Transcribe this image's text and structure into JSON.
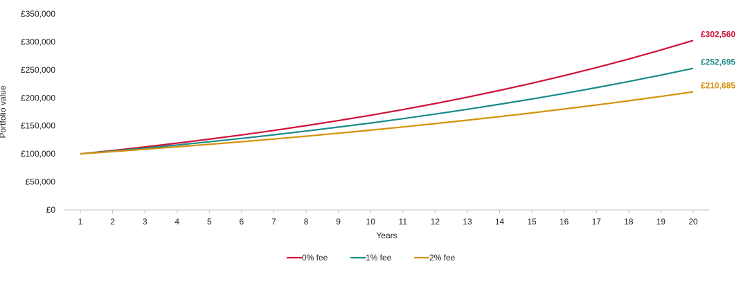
{
  "chart_data": {
    "type": "line",
    "xlabel": "Years",
    "ylabel": "Portfolio value",
    "x": [
      1,
      2,
      3,
      4,
      5,
      6,
      7,
      8,
      9,
      10,
      11,
      12,
      13,
      14,
      15,
      16,
      17,
      18,
      19,
      20
    ],
    "ylim": [
      0,
      350000
    ],
    "yticks": [
      0,
      50000,
      100000,
      150000,
      200000,
      250000,
      300000,
      350000
    ],
    "ytick_labels": [
      "£0",
      "£50,000",
      "£100,000",
      "£150,000",
      "£200,000",
      "£250,000",
      "£300,000",
      "£350,000"
    ],
    "grid": false,
    "legend_position": "bottom",
    "series": [
      {
        "name": "0% fee",
        "color": "#d0103a",
        "start": 100000,
        "end": 302560,
        "end_label": "£302,560"
      },
      {
        "name": "1% fee",
        "color": "#1a8a8a",
        "start": 100000,
        "end": 252695,
        "end_label": "£252,695"
      },
      {
        "name": "2% fee",
        "color": "#d4920f",
        "start": 100000,
        "end": 210685,
        "end_label": "£210,685"
      }
    ]
  }
}
